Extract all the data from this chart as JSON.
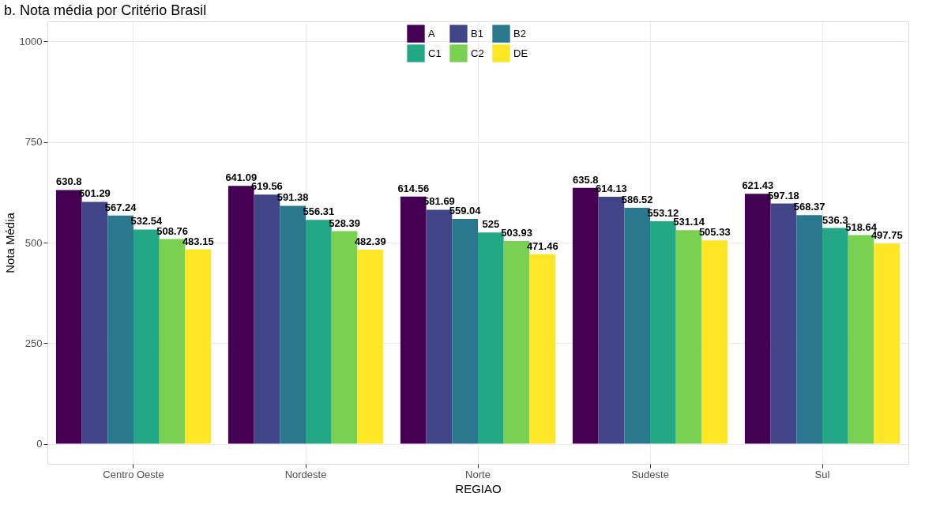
{
  "chart_data": {
    "type": "bar",
    "title": "b. Nota média por Critério Brasil",
    "xlabel": "REGIAO",
    "ylabel": "Nota Média",
    "categories": [
      "Centro Oeste",
      "Nordeste",
      "Norte",
      "Sudeste",
      "Sul"
    ],
    "series": [
      {
        "name": "A",
        "color": "#440154",
        "values": [
          630.8,
          641.09,
          614.56,
          635.8,
          621.43
        ]
      },
      {
        "name": "B1",
        "color": "#414487",
        "values": [
          601.29,
          619.56,
          581.69,
          614.13,
          597.18
        ]
      },
      {
        "name": "B2",
        "color": "#2a788e",
        "values": [
          567.24,
          591.38,
          559.04,
          586.52,
          568.37
        ]
      },
      {
        "name": "C1",
        "color": "#22a884",
        "values": [
          532.54,
          556.31,
          525,
          553.12,
          536.3
        ]
      },
      {
        "name": "C2",
        "color": "#7ad151",
        "values": [
          508.76,
          528.39,
          503.93,
          531.14,
          518.64
        ]
      },
      {
        "name": "DE",
        "color": "#fde725",
        "values": [
          483.15,
          482.39,
          471.46,
          505.33,
          497.75
        ]
      }
    ],
    "ylim": [
      -50,
      1050
    ],
    "yticks": [
      0,
      250,
      500,
      750,
      1000
    ],
    "grid": true,
    "legend": "top",
    "data_labels": true
  }
}
